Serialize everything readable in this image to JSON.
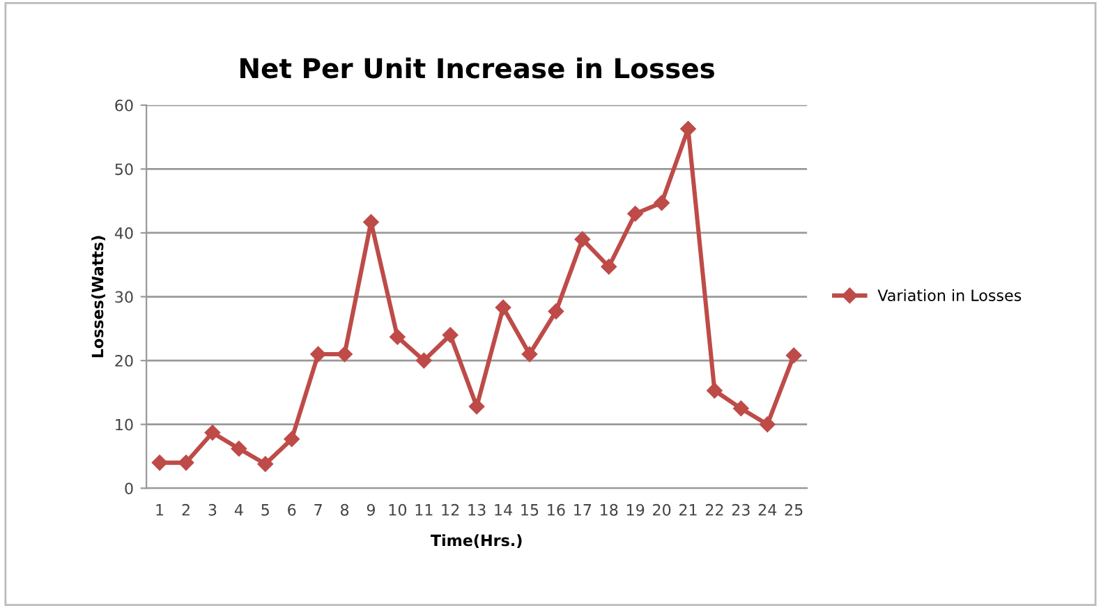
{
  "chart_data": {
    "type": "line",
    "title": "Net Per Unit Increase in Losses",
    "xlabel": "Time(Hrs.)",
    "ylabel": "Losses(Watts)",
    "categories": [
      "1",
      "2",
      "3",
      "4",
      "5",
      "6",
      "7",
      "8",
      "9",
      "10",
      "11",
      "12",
      "13",
      "14",
      "15",
      "16",
      "17",
      "18",
      "19",
      "20",
      "21",
      "22",
      "23",
      "24",
      "25"
    ],
    "series": [
      {
        "name": "Variation in Losses",
        "color": "#be4b48",
        "values": [
          4,
          4,
          8.7,
          6.2,
          3.8,
          7.7,
          21,
          21,
          41.7,
          23.7,
          20,
          24,
          12.8,
          28.3,
          21,
          27.7,
          39,
          34.7,
          43,
          44.7,
          56.3,
          15.3,
          12.5,
          10,
          20.8
        ]
      }
    ],
    "ylim": [
      0,
      60
    ],
    "yticks": [
      0,
      10,
      20,
      30,
      40,
      50,
      60
    ],
    "grid": "y",
    "legend": "right",
    "marker": "diamond",
    "line_style": "solid"
  }
}
